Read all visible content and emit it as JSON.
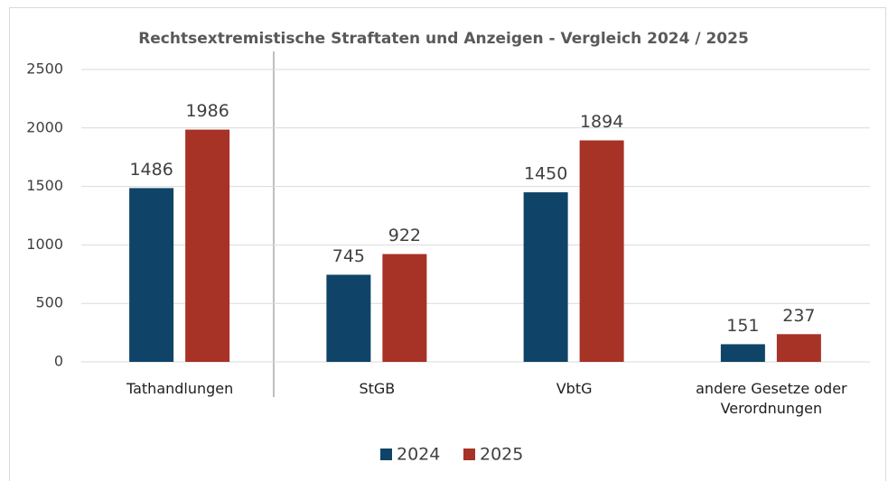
{
  "chart_data": {
    "type": "bar",
    "title": "Rechtsextremistische Straftaten und Anzeigen - Vergleich 2024 / 2025",
    "categories": [
      "Tathandlungen",
      "StGB",
      "VbtG",
      "andere Gesetze oder Verordnungen"
    ],
    "series": [
      {
        "name": "2024",
        "color": "#0f4468",
        "values": [
          1486,
          745,
          1450,
          151
        ]
      },
      {
        "name": "2025",
        "color": "#a73226",
        "values": [
          1986,
          922,
          1894,
          237
        ]
      }
    ],
    "ylim": [
      0,
      2500
    ],
    "yticks": [
      0,
      500,
      1000,
      1500,
      2000,
      2500
    ],
    "grid": true,
    "legend": "bottom"
  }
}
